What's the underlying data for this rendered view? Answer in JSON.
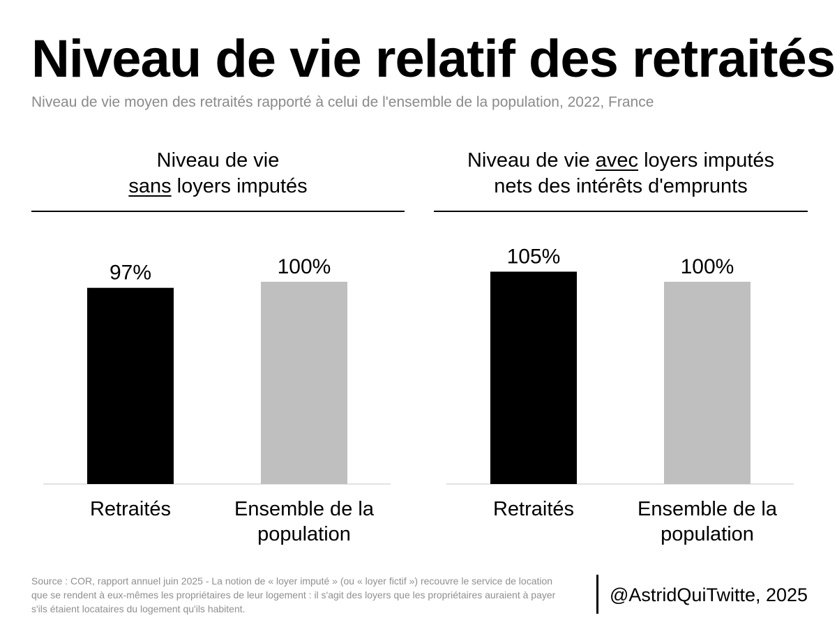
{
  "title": "Niveau de vie relatif des retraités",
  "subtitle": "Niveau de vie moyen des retraités rapporté à celui de l'ensemble de la population, 2022, France",
  "panels": [
    {
      "heading_line1": "Niveau de vie",
      "heading_line2_underlined": "sans",
      "heading_line2_rest": " loyers imputés"
    },
    {
      "heading_line1_pre": "Niveau de vie ",
      "heading_line1_underlined": "avec",
      "heading_line1_post": " loyers imputés",
      "heading_line2": "nets des intérêts d'emprunts"
    }
  ],
  "chart_data": [
    {
      "type": "bar",
      "title": "Niveau de vie sans loyers imputés",
      "categories": [
        "Retraités",
        "Ensemble de la population"
      ],
      "category_lines": [
        [
          "Retraités"
        ],
        [
          "Ensemble de la",
          "population"
        ]
      ],
      "values": [
        97,
        100
      ],
      "value_labels": [
        "97%",
        "100%"
      ],
      "colors": [
        "#000000",
        "#bfbfbf"
      ],
      "ylim": [
        0,
        105
      ],
      "grid": false
    },
    {
      "type": "bar",
      "title": "Niveau de vie avec loyers imputés nets des intérêts d'emprunts",
      "categories": [
        "Retraités",
        "Ensemble de la population"
      ],
      "category_lines": [
        [
          "Retraités"
        ],
        [
          "Ensemble de la",
          "population"
        ]
      ],
      "values": [
        105,
        100
      ],
      "value_labels": [
        "105%",
        "100%"
      ],
      "colors": [
        "#000000",
        "#bfbfbf"
      ],
      "ylim": [
        0,
        105
      ],
      "grid": false
    }
  ],
  "footnote": "Source : COR, rapport annuel juin 2025 - La notion de « loyer imputé » (ou « loyer fictif ») recouvre le service de location que se rendent à eux-mêmes les propriétaires de leur logement : il s'agit des loyers que les propriétaires auraient à payer s'ils étaient locataires du logement qu'ils habitent.",
  "credit": "@AstridQuiTwitte, 2025"
}
